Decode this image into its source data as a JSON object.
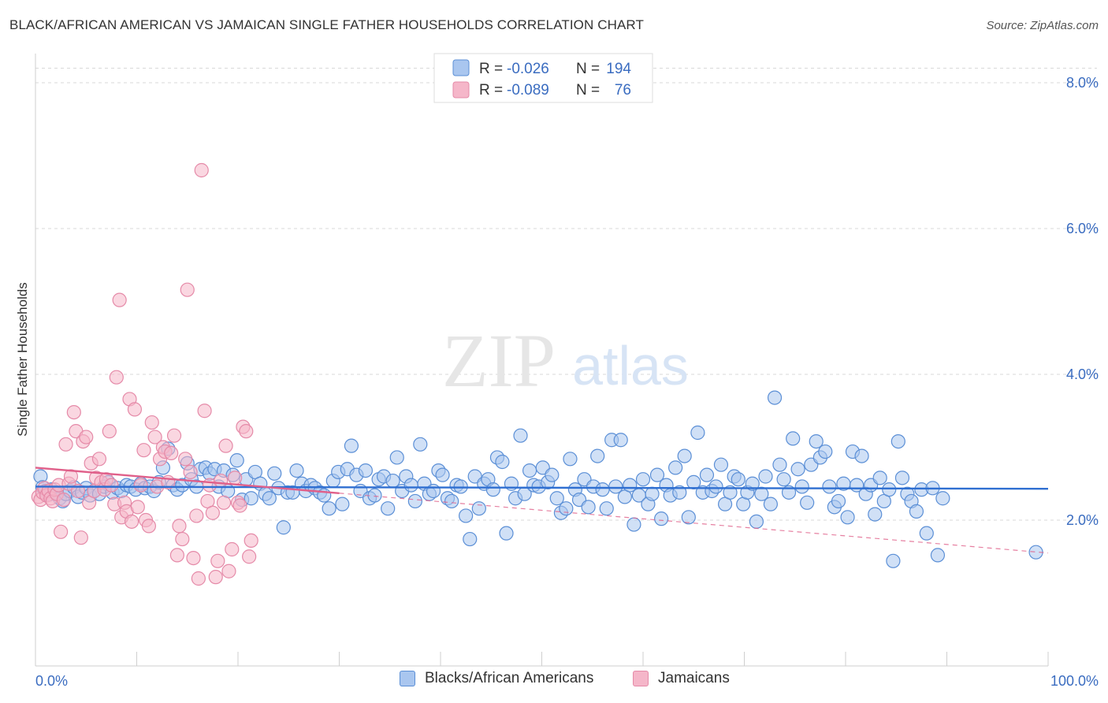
{
  "header": {
    "title": "BLACK/AFRICAN AMERICAN VS JAMAICAN SINGLE FATHER HOUSEHOLDS CORRELATION CHART",
    "source": "Source: ZipAtlas.com"
  },
  "watermark": {
    "zip": "ZIP",
    "atlas": "atlas"
  },
  "legend_top": {
    "rows": [
      {
        "r_label": "R =",
        "r_value": "-0.026",
        "n_label": "N =",
        "n_value": "194"
      },
      {
        "r_label": "R =",
        "r_value": "-0.089",
        "n_label": "N =",
        "n_value": "76"
      }
    ]
  },
  "legend_bottom": {
    "items": [
      {
        "label": "Blacks/African Americans"
      },
      {
        "label": "Jamaicans"
      }
    ]
  },
  "colors": {
    "blue_fill": "#a9c6ef",
    "blue_stroke": "#5b8fd6",
    "blue_line": "#2f6fd1",
    "pink_fill": "#f5b6c9",
    "pink_stroke": "#e58aa8",
    "pink_line": "#e0608a",
    "grid": "#d9d9d9",
    "axis_text": "#3a6cc0"
  },
  "chart_data": {
    "type": "scatter",
    "title": "BLACK/AFRICAN AMERICAN VS JAMAICAN SINGLE FATHER HOUSEHOLDS CORRELATION CHART",
    "xlabel": "",
    "ylabel": "Single Father Households",
    "xlim": [
      0,
      100
    ],
    "ylim": [
      0,
      8.4
    ],
    "x_tick_labels": [
      "0.0%",
      "100.0%"
    ],
    "y_ticks": [
      2,
      4,
      6,
      8
    ],
    "y_tick_labels": [
      "2.0%",
      "4.0%",
      "6.0%",
      "8.0%"
    ],
    "grid": "horizontal dashed",
    "legend_position": "top-center",
    "series": [
      {
        "name": "Blacks/African Americans",
        "color": "#a9c6ef",
        "trend": {
          "x": [
            0,
            100
          ],
          "y": [
            2.46,
            2.43
          ],
          "style": "solid"
        },
        "points": [
          [
            0.5,
            2.6
          ],
          [
            0.7,
            2.45
          ],
          [
            1.0,
            2.4
          ],
          [
            1.3,
            2.35
          ],
          [
            1.6,
            2.42
          ],
          [
            2.0,
            2.38
          ],
          [
            2.4,
            2.3
          ],
          [
            2.7,
            2.26
          ],
          [
            3.0,
            2.36
          ],
          [
            3.4,
            2.4
          ],
          [
            3.8,
            2.45
          ],
          [
            4.2,
            2.32
          ],
          [
            4.6,
            2.38
          ],
          [
            5.0,
            2.44
          ],
          [
            5.4,
            2.34
          ],
          [
            5.8,
            2.4
          ],
          [
            6.3,
            2.36
          ],
          [
            6.8,
            2.46
          ],
          [
            7.2,
            2.52
          ],
          [
            7.6,
            2.38
          ],
          [
            8.1,
            2.44
          ],
          [
            8.5,
            2.4
          ],
          [
            9.0,
            2.48
          ],
          [
            9.4,
            2.46
          ],
          [
            9.9,
            2.42
          ],
          [
            10.4,
            2.5
          ],
          [
            10.8,
            2.44
          ],
          [
            11.3,
            2.46
          ],
          [
            11.7,
            2.4
          ],
          [
            12.2,
            2.52
          ],
          [
            12.6,
            2.72
          ],
          [
            13.1,
            2.98
          ],
          [
            13.6,
            2.48
          ],
          [
            14.0,
            2.42
          ],
          [
            14.5,
            2.48
          ],
          [
            15.0,
            2.78
          ],
          [
            15.4,
            2.56
          ],
          [
            15.9,
            2.46
          ],
          [
            16.3,
            2.7
          ],
          [
            16.8,
            2.72
          ],
          [
            17.2,
            2.64
          ],
          [
            17.7,
            2.7
          ],
          [
            18.1,
            2.46
          ],
          [
            18.6,
            2.68
          ],
          [
            19.0,
            2.4
          ],
          [
            19.5,
            2.62
          ],
          [
            19.9,
            2.82
          ],
          [
            20.4,
            2.28
          ],
          [
            20.8,
            2.56
          ],
          [
            21.3,
            2.3
          ],
          [
            21.7,
            2.66
          ],
          [
            22.2,
            2.5
          ],
          [
            22.7,
            2.36
          ],
          [
            23.1,
            2.3
          ],
          [
            23.6,
            2.64
          ],
          [
            24.0,
            2.44
          ],
          [
            24.5,
            1.9
          ],
          [
            24.9,
            2.38
          ],
          [
            25.4,
            2.38
          ],
          [
            25.8,
            2.68
          ],
          [
            26.3,
            2.5
          ],
          [
            26.7,
            2.4
          ],
          [
            27.2,
            2.48
          ],
          [
            27.6,
            2.44
          ],
          [
            28.1,
            2.38
          ],
          [
            28.5,
            2.34
          ],
          [
            29.0,
            2.16
          ],
          [
            29.4,
            2.54
          ],
          [
            29.9,
            2.66
          ],
          [
            30.3,
            2.22
          ],
          [
            30.8,
            2.7
          ],
          [
            31.2,
            3.02
          ],
          [
            31.7,
            2.62
          ],
          [
            32.1,
            2.4
          ],
          [
            32.6,
            2.68
          ],
          [
            33.0,
            2.3
          ],
          [
            33.5,
            2.34
          ],
          [
            33.9,
            2.56
          ],
          [
            34.4,
            2.6
          ],
          [
            34.8,
            2.16
          ],
          [
            35.3,
            2.54
          ],
          [
            35.7,
            2.86
          ],
          [
            36.2,
            2.4
          ],
          [
            36.6,
            2.6
          ],
          [
            37.1,
            2.48
          ],
          [
            37.5,
            2.26
          ],
          [
            38.0,
            3.04
          ],
          [
            38.4,
            2.5
          ],
          [
            38.9,
            2.36
          ],
          [
            39.3,
            2.4
          ],
          [
            39.8,
            2.68
          ],
          [
            40.2,
            2.62
          ],
          [
            40.7,
            2.3
          ],
          [
            41.1,
            2.26
          ],
          [
            41.6,
            2.48
          ],
          [
            42.0,
            2.46
          ],
          [
            42.5,
            2.06
          ],
          [
            42.9,
            1.74
          ],
          [
            43.4,
            2.6
          ],
          [
            43.8,
            2.16
          ],
          [
            44.3,
            2.5
          ],
          [
            44.7,
            2.56
          ],
          [
            45.2,
            2.42
          ],
          [
            45.6,
            2.86
          ],
          [
            46.1,
            2.8
          ],
          [
            46.5,
            1.82
          ],
          [
            47.0,
            2.5
          ],
          [
            47.4,
            2.3
          ],
          [
            47.9,
            3.16
          ],
          [
            48.3,
            2.36
          ],
          [
            48.8,
            2.68
          ],
          [
            49.2,
            2.48
          ],
          [
            49.7,
            2.46
          ],
          [
            50.1,
            2.72
          ],
          [
            50.6,
            2.52
          ],
          [
            51.0,
            2.62
          ],
          [
            51.5,
            2.3
          ],
          [
            51.9,
            2.1
          ],
          [
            52.4,
            2.16
          ],
          [
            52.8,
            2.84
          ],
          [
            53.3,
            2.42
          ],
          [
            53.7,
            2.28
          ],
          [
            54.2,
            2.56
          ],
          [
            54.6,
            2.18
          ],
          [
            55.1,
            2.46
          ],
          [
            55.5,
            2.88
          ],
          [
            56.0,
            2.42
          ],
          [
            56.4,
            2.16
          ],
          [
            56.9,
            3.1
          ],
          [
            57.3,
            2.46
          ],
          [
            57.8,
            3.1
          ],
          [
            58.2,
            2.32
          ],
          [
            58.7,
            2.48
          ],
          [
            59.1,
            1.94
          ],
          [
            59.6,
            2.34
          ],
          [
            60.0,
            2.56
          ],
          [
            60.5,
            2.22
          ],
          [
            60.9,
            2.36
          ],
          [
            61.4,
            2.62
          ],
          [
            61.8,
            2.02
          ],
          [
            62.3,
            2.48
          ],
          [
            62.7,
            2.34
          ],
          [
            63.2,
            2.72
          ],
          [
            63.6,
            2.38
          ],
          [
            64.1,
            2.88
          ],
          [
            64.5,
            2.04
          ],
          [
            65.0,
            2.52
          ],
          [
            65.4,
            3.2
          ],
          [
            65.9,
            2.38
          ],
          [
            66.3,
            2.62
          ],
          [
            66.8,
            2.4
          ],
          [
            67.2,
            2.46
          ],
          [
            67.7,
            2.76
          ],
          [
            68.1,
            2.22
          ],
          [
            68.6,
            2.38
          ],
          [
            69.0,
            2.6
          ],
          [
            69.4,
            2.56
          ],
          [
            69.9,
            2.22
          ],
          [
            70.3,
            2.38
          ],
          [
            70.8,
            2.5
          ],
          [
            71.2,
            1.98
          ],
          [
            71.7,
            2.36
          ],
          [
            72.1,
            2.6
          ],
          [
            72.6,
            2.22
          ],
          [
            73.0,
            3.68
          ],
          [
            73.5,
            2.76
          ],
          [
            73.9,
            2.56
          ],
          [
            74.4,
            2.38
          ],
          [
            74.8,
            3.12
          ],
          [
            75.3,
            2.7
          ],
          [
            75.7,
            2.46
          ],
          [
            76.2,
            2.24
          ],
          [
            76.6,
            2.76
          ],
          [
            77.1,
            3.08
          ],
          [
            77.5,
            2.86
          ],
          [
            78.0,
            2.94
          ],
          [
            78.4,
            2.46
          ],
          [
            78.9,
            2.18
          ],
          [
            79.3,
            2.26
          ],
          [
            79.8,
            2.5
          ],
          [
            80.2,
            2.04
          ],
          [
            80.7,
            2.94
          ],
          [
            81.1,
            2.48
          ],
          [
            81.6,
            2.88
          ],
          [
            82.0,
            2.36
          ],
          [
            82.5,
            2.48
          ],
          [
            82.9,
            2.08
          ],
          [
            83.4,
            2.58
          ],
          [
            83.8,
            2.26
          ],
          [
            84.3,
            2.42
          ],
          [
            84.7,
            1.44
          ],
          [
            85.2,
            3.08
          ],
          [
            85.6,
            2.58
          ],
          [
            86.1,
            2.36
          ],
          [
            86.5,
            2.26
          ],
          [
            87.0,
            2.12
          ],
          [
            87.5,
            2.42
          ],
          [
            88.0,
            1.82
          ],
          [
            88.6,
            2.44
          ],
          [
            89.1,
            1.52
          ],
          [
            89.6,
            2.3
          ],
          [
            98.8,
            1.56
          ]
        ]
      },
      {
        "name": "Jamaicans",
        "color": "#f5b6c9",
        "trend": {
          "x": [
            0,
            30
          ],
          "y": [
            2.72,
            2.37
          ],
          "style": "solid",
          "extended_x": [
            30,
            100
          ],
          "extended_y": [
            2.37,
            1.55
          ],
          "extended_style": "dashed"
        },
        "points": [
          [
            0.3,
            2.32
          ],
          [
            0.5,
            2.28
          ],
          [
            0.7,
            2.38
          ],
          [
            0.9,
            2.44
          ],
          [
            1.1,
            2.34
          ],
          [
            1.3,
            2.4
          ],
          [
            1.5,
            2.3
          ],
          [
            1.7,
            2.26
          ],
          [
            1.9,
            2.42
          ],
          [
            2.1,
            2.36
          ],
          [
            2.3,
            2.48
          ],
          [
            2.5,
            1.84
          ],
          [
            2.8,
            2.28
          ],
          [
            3.0,
            3.04
          ],
          [
            3.3,
            2.5
          ],
          [
            3.5,
            2.6
          ],
          [
            3.8,
            3.48
          ],
          [
            4.0,
            3.22
          ],
          [
            4.2,
            2.4
          ],
          [
            4.5,
            1.76
          ],
          [
            4.7,
            3.08
          ],
          [
            5.0,
            3.14
          ],
          [
            5.3,
            2.24
          ],
          [
            5.5,
            2.78
          ],
          [
            5.8,
            2.4
          ],
          [
            6.0,
            2.58
          ],
          [
            6.3,
            2.84
          ],
          [
            6.5,
            2.52
          ],
          [
            6.8,
            2.42
          ],
          [
            7.0,
            2.56
          ],
          [
            7.3,
            3.22
          ],
          [
            7.5,
            2.48
          ],
          [
            7.8,
            2.22
          ],
          [
            8.0,
            3.96
          ],
          [
            8.3,
            5.02
          ],
          [
            8.5,
            2.04
          ],
          [
            8.8,
            2.24
          ],
          [
            9.0,
            2.12
          ],
          [
            9.3,
            3.66
          ],
          [
            9.5,
            1.98
          ],
          [
            9.8,
            3.52
          ],
          [
            10.1,
            2.18
          ],
          [
            10.4,
            2.48
          ],
          [
            10.7,
            2.96
          ],
          [
            10.9,
            2.0
          ],
          [
            11.2,
            1.92
          ],
          [
            11.5,
            3.34
          ],
          [
            11.8,
            3.14
          ],
          [
            12.0,
            2.46
          ],
          [
            12.3,
            2.84
          ],
          [
            12.6,
            3.0
          ],
          [
            12.8,
            2.94
          ],
          [
            13.1,
            2.52
          ],
          [
            13.4,
            2.92
          ],
          [
            13.7,
            3.16
          ],
          [
            14.0,
            1.52
          ],
          [
            14.2,
            1.92
          ],
          [
            14.5,
            1.74
          ],
          [
            14.8,
            2.84
          ],
          [
            15.0,
            5.16
          ],
          [
            15.3,
            2.66
          ],
          [
            15.6,
            1.48
          ],
          [
            15.9,
            2.06
          ],
          [
            16.1,
            1.2
          ],
          [
            16.4,
            6.8
          ],
          [
            16.7,
            3.5
          ],
          [
            17.0,
            2.26
          ],
          [
            17.2,
            2.48
          ],
          [
            17.5,
            2.1
          ],
          [
            17.8,
            1.22
          ],
          [
            18.0,
            1.44
          ],
          [
            18.3,
            2.54
          ],
          [
            18.6,
            2.24
          ],
          [
            18.8,
            3.02
          ],
          [
            19.1,
            1.3
          ],
          [
            19.4,
            1.6
          ],
          [
            19.7,
            2.58
          ],
          [
            20.0,
            2.24
          ],
          [
            20.2,
            2.2
          ],
          [
            20.5,
            3.28
          ],
          [
            20.8,
            3.22
          ],
          [
            21.1,
            1.5
          ],
          [
            21.3,
            1.72
          ]
        ]
      }
    ]
  }
}
